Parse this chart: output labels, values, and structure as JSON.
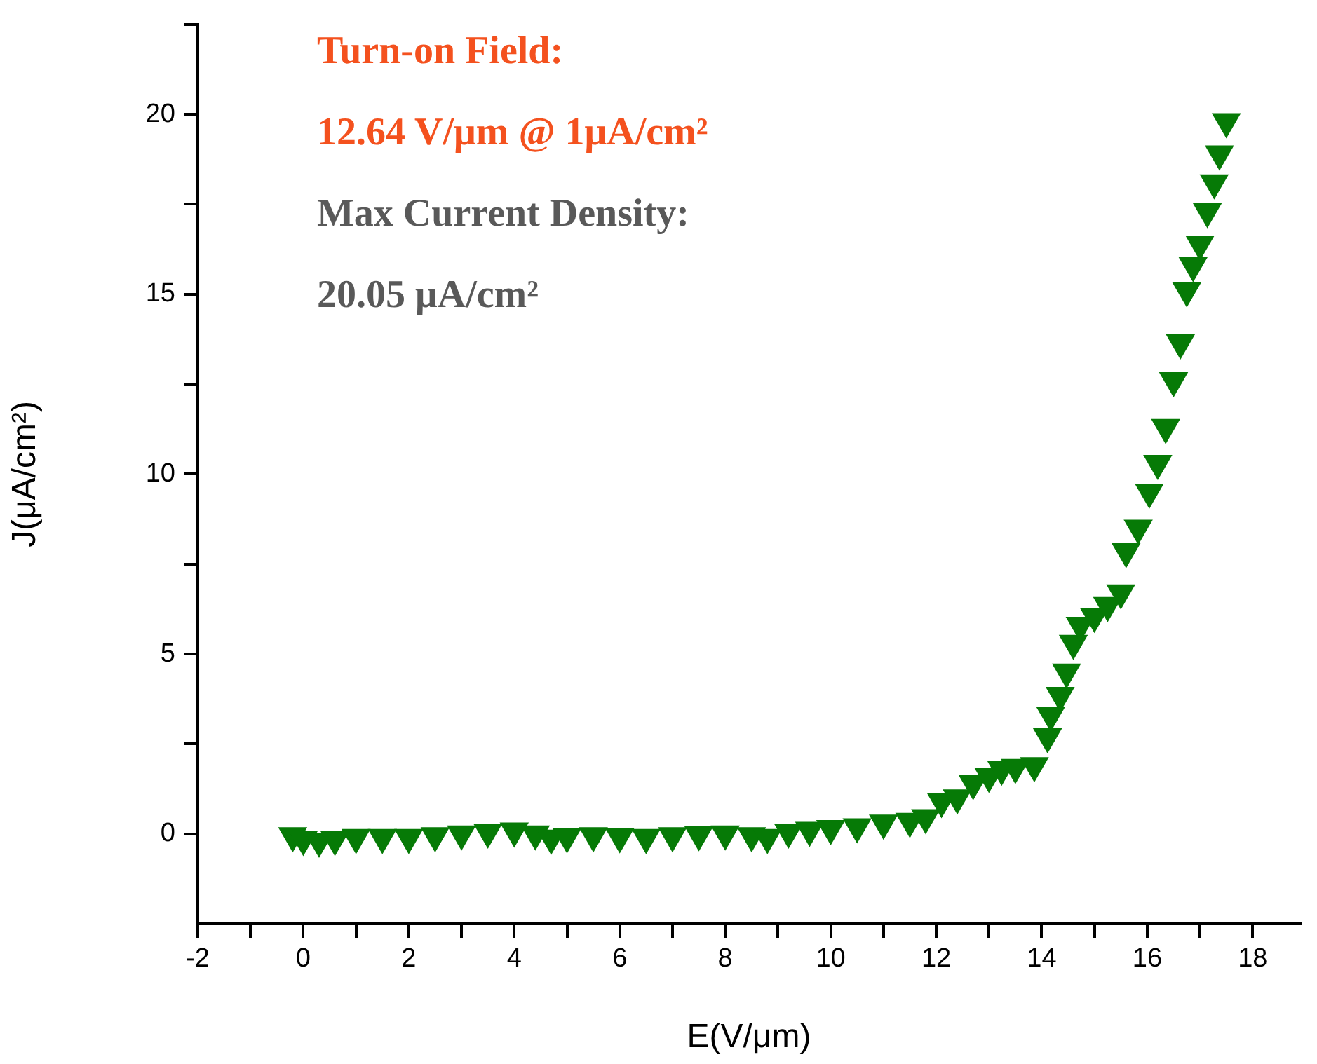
{
  "chart_data": {
    "type": "scatter",
    "xlabel": "E(V/μm)",
    "ylabel": "J(μA/cm²)",
    "annotations": [
      "Turn-on Field:",
      "12.64 V/μm @ 1μA/cm²",
      "Max Current Density:",
      "20.05 μA/cm²"
    ],
    "xlim": [
      -2,
      18.9
    ],
    "xticks": [
      -2,
      {
        "value": -1,
        "label": null
      },
      0,
      {
        "value": 1,
        "label": null
      },
      2,
      {
        "value": 3,
        "label": null
      },
      4,
      {
        "value": 5,
        "label": null
      },
      6,
      {
        "value": 7,
        "label": null
      },
      8,
      {
        "value": 9,
        "label": null
      },
      10,
      {
        "value": 11,
        "label": null
      },
      12,
      {
        "value": 13,
        "label": null
      },
      14,
      {
        "value": 15,
        "label": null
      },
      16,
      {
        "value": 17,
        "label": null
      },
      18
    ],
    "ylim": [
      -2.5,
      22.5
    ],
    "yticks": [
      0,
      {
        "value": 2.5,
        "label": null
      },
      5,
      {
        "value": 7.5,
        "label": null
      },
      10,
      {
        "value": 12.5,
        "label": null
      },
      15,
      {
        "value": 17.5,
        "label": null
      },
      20,
      {
        "value": 22.5,
        "label": null
      }
    ],
    "grid": false,
    "legend": false,
    "marker": "triangle",
    "series": [
      {
        "color": "#067a06",
        "x": [
          -0.2,
          0,
          0.3,
          0.6,
          1,
          1.5,
          2,
          2.5,
          3,
          3.5,
          4,
          4.4,
          4.7,
          5,
          5.5,
          6,
          6.5,
          7,
          7.5,
          8,
          8.5,
          8.8,
          9.2,
          9.6,
          10,
          10.5,
          11,
          11.5,
          11.8,
          12.1,
          12.4,
          12.7,
          13,
          13.24,
          13.5,
          13.86,
          14.11,
          14.17,
          14.35,
          14.47,
          14.6,
          14.73,
          15,
          15.25,
          15.5,
          15.6,
          15.83,
          16.04,
          16.2,
          16.35,
          16.5,
          16.63,
          16.75,
          16.87,
          17,
          17.14,
          17.27,
          17.37,
          17.5
        ],
        "values": [
          -0.05,
          -0.15,
          -0.2,
          -0.15,
          -0.1,
          -0.1,
          -0.1,
          -0.05,
          0,
          0.05,
          0.08,
          0,
          -0.12,
          -0.08,
          -0.05,
          -0.08,
          -0.1,
          -0.05,
          -0.02,
          0,
          -0.05,
          -0.1,
          0.05,
          0.1,
          0.15,
          0.2,
          0.3,
          0.35,
          0.45,
          0.9,
          1,
          1.4,
          1.6,
          1.8,
          1.85,
          1.9,
          2.7,
          3.3,
          3.85,
          4.5,
          5.3,
          5.8,
          6.05,
          6.35,
          6.7,
          7.85,
          8.5,
          9.5,
          10.3,
          11.3,
          12.6,
          13.65,
          15.1,
          15.8,
          16.4,
          17.3,
          18.1,
          18.9,
          19.8
        ]
      }
    ]
  }
}
